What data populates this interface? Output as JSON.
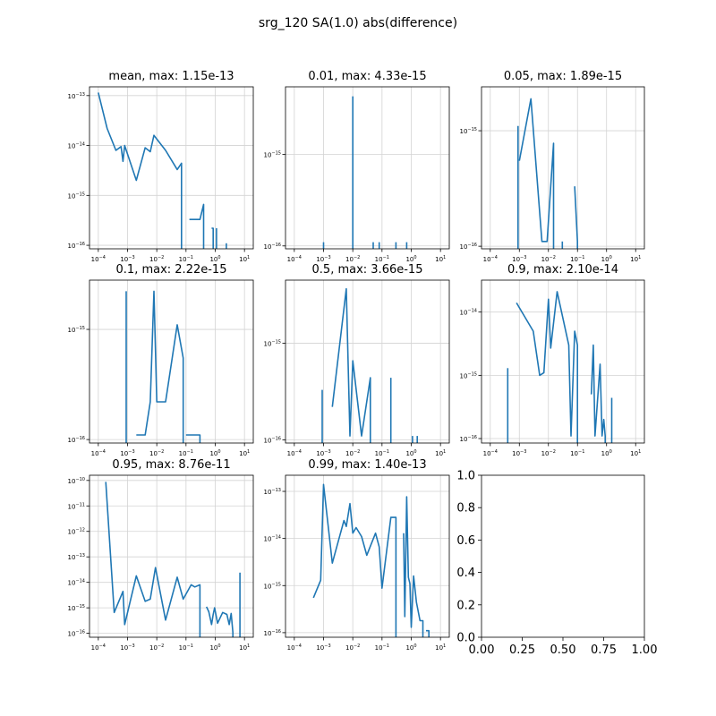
{
  "figure": {
    "title": "srg_120 SA(1.0) abs(difference)"
  },
  "chart_data": [
    {
      "type": "line",
      "xscale": "log",
      "yscale": "log",
      "grid": true,
      "title": "mean, max:  1.15e-13",
      "xlim": [
        5e-05,
        20
      ],
      "ylim": [
        8.5e-17,
        1.5e-13
      ],
      "x_tick_labels": [
        "10^-4",
        "10^-3",
        "10^-2",
        "10^-1",
        "10^0",
        "10^1"
      ],
      "y_tick_labels": [
        "10^-16",
        "10^-15",
        "10^-14",
        "10^-13"
      ],
      "series": [
        {
          "points": [
            [
              0.0001,
              1.15e-13
            ],
            [
              0.0002,
              2.2e-14
            ],
            [
              0.0004,
              8e-15
            ],
            [
              0.0006,
              9.5e-15
            ],
            [
              0.0007,
              4.8e-15
            ],
            [
              0.0008,
              1e-14
            ],
            [
              0.002,
              2e-15
            ],
            [
              0.004,
              9e-15
            ],
            [
              0.006,
              7.5e-15
            ],
            [
              0.008,
              1.6e-14
            ],
            [
              0.02,
              8e-15
            ],
            [
              0.05,
              3.3e-15
            ],
            [
              0.07,
              4.4e-15
            ],
            [
              0.07,
              null
            ]
          ]
        },
        {
          "points": [
            [
              0.13,
              3.3e-16
            ],
            [
              0.3,
              3.3e-16
            ],
            [
              0.4,
              6.6e-16
            ],
            [
              0.4,
              null
            ]
          ]
        },
        {
          "points": [
            [
              0.75,
              2.2e-16
            ],
            [
              0.85,
              2.2e-16
            ],
            [
              0.85,
              null
            ]
          ]
        },
        {
          "points": [
            [
              1.1,
              2.2e-16
            ],
            [
              1.1,
              null
            ]
          ]
        },
        {
          "points": [
            [
              2.4,
              1.1e-16
            ],
            [
              2.4,
              null
            ]
          ]
        }
      ]
    },
    {
      "type": "line",
      "xscale": "log",
      "yscale": "log",
      "grid": true,
      "title": "0.01, max:  4.33e-15",
      "xlim": [
        5e-05,
        20
      ],
      "ylim": [
        9.3e-17,
        5.5e-15
      ],
      "x_tick_labels": [
        "10^-4",
        "10^-3",
        "10^-2",
        "10^-1",
        "10^0",
        "10^1"
      ],
      "y_tick_labels": [
        "10^-16",
        "10^-15"
      ],
      "series": [
        {
          "points": [
            [
              0.001,
              1.1e-16
            ],
            [
              0.001,
              null
            ]
          ]
        },
        {
          "points": [
            [
              0.01,
              4.33e-15
            ],
            [
              0.01,
              null
            ]
          ]
        },
        {
          "points": [
            [
              0.05,
              1.1e-16
            ],
            [
              0.05,
              null
            ]
          ]
        },
        {
          "points": [
            [
              0.08,
              1.1e-16
            ],
            [
              0.08,
              null
            ]
          ]
        },
        {
          "points": [
            [
              0.3,
              1.1e-16
            ],
            [
              0.3,
              null
            ]
          ]
        },
        {
          "points": [
            [
              0.7,
              1.1e-16
            ],
            [
              0.7,
              null
            ]
          ]
        }
      ]
    },
    {
      "type": "line",
      "xscale": "log",
      "yscale": "log",
      "grid": true,
      "title": "0.05, max:  1.89e-15",
      "xlim": [
        5e-05,
        20
      ],
      "ylim": [
        9.5e-17,
        2.4e-15
      ],
      "x_tick_labels": [
        "10^-4",
        "10^-3",
        "10^-2",
        "10^-1",
        "10^0",
        "10^1"
      ],
      "y_tick_labels": [
        "10^-16",
        "10^-15"
      ],
      "series": [
        {
          "points": [
            [
              0.0009,
              1.1e-15
            ],
            [
              0.0009,
              null
            ]
          ]
        },
        {
          "points": [
            [
              0.001,
              5.5e-16
            ],
            [
              0.0025,
              1.89e-15
            ],
            [
              0.006,
              1.1e-16
            ],
            [
              0.009,
              1.1e-16
            ],
            [
              0.015,
              7.8e-16
            ],
            [
              0.015,
              null
            ]
          ]
        },
        {
          "points": [
            [
              0.03,
              1.1e-16
            ],
            [
              0.03,
              null
            ]
          ]
        },
        {
          "points": [
            [
              0.08,
              3.3e-16
            ],
            [
              0.1,
              1.1e-16
            ],
            [
              0.1,
              null
            ]
          ]
        }
      ]
    },
    {
      "type": "line",
      "xscale": "log",
      "yscale": "log",
      "grid": true,
      "title": "0.1, max:  2.22e-15",
      "xlim": [
        5e-05,
        20
      ],
      "ylim": [
        9.3e-17,
        2.8e-15
      ],
      "x_tick_labels": [
        "10^-4",
        "10^-3",
        "10^-2",
        "10^-1",
        "10^0",
        "10^1"
      ],
      "y_tick_labels": [
        "10^-16",
        "10^-15"
      ],
      "series": [
        {
          "points": [
            [
              0.0009,
              2.22e-15
            ],
            [
              0.0009,
              null
            ]
          ]
        },
        {
          "points": [
            [
              0.002,
              1.1e-16
            ],
            [
              0.004,
              1.1e-16
            ],
            [
              0.006,
              2.2e-16
            ],
            [
              0.008,
              2.22e-15
            ],
            [
              0.01,
              2.2e-16
            ],
            [
              0.02,
              2.2e-16
            ],
            [
              0.05,
              1.1e-15
            ],
            [
              0.08,
              5.5e-16
            ],
            [
              0.08,
              null
            ]
          ]
        },
        {
          "points": [
            [
              0.1,
              1.1e-16
            ],
            [
              0.3,
              1.1e-16
            ],
            [
              0.3,
              null
            ]
          ]
        }
      ]
    },
    {
      "type": "line",
      "xscale": "log",
      "yscale": "log",
      "grid": true,
      "title": "0.5, max:  3.66e-15",
      "xlim": [
        5e-05,
        20
      ],
      "ylim": [
        9.3e-17,
        4.5e-15
      ],
      "x_tick_labels": [
        "10^-4",
        "10^-3",
        "10^-2",
        "10^-1",
        "10^0",
        "10^1"
      ],
      "y_tick_labels": [
        "10^-16",
        "10^-15"
      ],
      "series": [
        {
          "points": [
            [
              0.0009,
              3.3e-16
            ],
            [
              0.0009,
              null
            ]
          ]
        },
        {
          "points": [
            [
              0.002,
              2.2e-16
            ],
            [
              0.006,
              3.66e-15
            ],
            [
              0.008,
              1.1e-16
            ],
            [
              0.01,
              6.6e-16
            ],
            [
              0.02,
              1.1e-16
            ],
            [
              0.04,
              4.4e-16
            ],
            [
              0.04,
              null
            ]
          ]
        },
        {
          "points": [
            [
              0.2,
              4.4e-16
            ],
            [
              0.2,
              null
            ]
          ]
        },
        {
          "points": [
            [
              1.1,
              1.1e-16
            ],
            [
              1.1,
              null
            ]
          ]
        },
        {
          "points": [
            [
              1.6,
              1.1e-16
            ],
            [
              1.6,
              null
            ]
          ]
        }
      ]
    },
    {
      "type": "line",
      "xscale": "log",
      "yscale": "log",
      "grid": true,
      "title": "0.9, max:  2.10e-14",
      "xlim": [
        5e-05,
        20
      ],
      "ylim": [
        8.5e-17,
        3.2e-14
      ],
      "x_tick_labels": [
        "10^-4",
        "10^-3",
        "10^-2",
        "10^-1",
        "10^0",
        "10^1"
      ],
      "y_tick_labels": [
        "10^-16",
        "10^-15",
        "10^-14"
      ],
      "series": [
        {
          "points": [
            [
              0.0004,
              1.3e-15
            ],
            [
              0.0004,
              null
            ]
          ]
        },
        {
          "points": [
            [
              0.0008,
              1.4e-14
            ],
            [
              0.003,
              5e-15
            ],
            [
              0.005,
              1e-15
            ],
            [
              0.007,
              1.1e-15
            ],
            [
              0.01,
              1.6e-14
            ],
            [
              0.012,
              2.7e-15
            ],
            [
              0.02,
              2.1e-14
            ],
            [
              0.05,
              3e-15
            ],
            [
              0.06,
              1.1e-16
            ],
            [
              0.08,
              5e-15
            ],
            [
              0.1,
              3e-15
            ],
            [
              0.1,
              null
            ]
          ]
        },
        {
          "points": [
            [
              0.3,
              5e-16
            ],
            [
              0.35,
              3e-15
            ],
            [
              0.4,
              1.1e-16
            ],
            [
              0.6,
              1.5e-15
            ],
            [
              0.7,
              1.1e-16
            ],
            [
              0.8,
              2e-16
            ],
            [
              0.9,
              1.1e-16
            ],
            [
              0.9,
              null
            ]
          ]
        },
        {
          "points": [
            [
              1.5,
              4.4e-16
            ],
            [
              1.5,
              null
            ]
          ]
        }
      ]
    },
    {
      "type": "line",
      "xscale": "log",
      "yscale": "log",
      "grid": true,
      "title": "0.95, max:  8.76e-11",
      "xlim": [
        5e-05,
        20
      ],
      "ylim": [
        7e-17,
        1.6e-10
      ],
      "x_tick_labels": [
        "10^-4",
        "10^-3",
        "10^-2",
        "10^-1",
        "10^0",
        "10^1"
      ],
      "y_tick_labels": [
        "10^-16",
        "10^-15",
        "10^-14",
        "10^-13",
        "10^-12",
        "10^-11",
        "10^-10"
      ],
      "series": [
        {
          "points": [
            [
              0.00018,
              8.76e-11
            ],
            [
              0.00035,
              6.6e-16
            ],
            [
              0.0007,
              4.4e-15
            ],
            [
              0.0008,
              2.2e-16
            ],
            [
              0.002,
              1.8e-14
            ],
            [
              0.004,
              1.8e-15
            ],
            [
              0.006,
              2.2e-15
            ],
            [
              0.009,
              3.8e-14
            ],
            [
              0.02,
              3.3e-16
            ],
            [
              0.05,
              1.6e-14
            ],
            [
              0.08,
              2.2e-15
            ],
            [
              0.15,
              8e-15
            ],
            [
              0.2,
              6.6e-15
            ],
            [
              0.3,
              8e-15
            ],
            [
              0.3,
              null
            ]
          ]
        },
        {
          "points": [
            [
              0.5,
              1.1e-15
            ],
            [
              0.6,
              7e-16
            ],
            [
              0.75,
              2.2e-16
            ],
            [
              0.85,
              5.5e-16
            ],
            [
              0.95,
              1e-15
            ],
            [
              1.2,
              2.5e-16
            ],
            [
              1.8,
              6.6e-16
            ],
            [
              2.5,
              5.5e-16
            ],
            [
              3,
              2.2e-16
            ],
            [
              3.5,
              6e-16
            ],
            [
              4,
              1.1e-16
            ],
            [
              4,
              null
            ]
          ]
        },
        {
          "points": [
            [
              7,
              2.4e-14
            ],
            [
              7,
              null
            ]
          ]
        }
      ]
    },
    {
      "type": "line",
      "xscale": "log",
      "yscale": "log",
      "grid": true,
      "title": "0.99, max:  1.40e-13",
      "xlim": [
        5e-05,
        20
      ],
      "ylim": [
        8e-17,
        2.2e-13
      ],
      "x_tick_labels": [
        "10^-4",
        "10^-3",
        "10^-2",
        "10^-1",
        "10^0",
        "10^1"
      ],
      "y_tick_labels": [
        "10^-16",
        "10^-15",
        "10^-14",
        "10^-13"
      ],
      "series": [
        {
          "points": [
            [
              0.00045,
              5.5e-16
            ],
            [
              0.0008,
              1.3e-15
            ],
            [
              0.001,
              1.4e-13
            ],
            [
              0.002,
              3e-15
            ],
            [
              0.005,
              2.4e-14
            ],
            [
              0.006,
              1.8e-14
            ],
            [
              0.008,
              5.5e-14
            ],
            [
              0.01,
              1.3e-14
            ],
            [
              0.013,
              1.7e-14
            ],
            [
              0.02,
              1.1e-14
            ],
            [
              0.03,
              4.4e-15
            ],
            [
              0.06,
              1.3e-14
            ],
            [
              0.08,
              6.6e-15
            ],
            [
              0.1,
              8.8e-16
            ],
            [
              0.2,
              2.8e-14
            ],
            [
              0.3,
              2.8e-14
            ],
            [
              0.3,
              null
            ]
          ]
        },
        {
          "points": [
            [
              0.55,
              1.3e-14
            ],
            [
              0.6,
              2.2e-16
            ],
            [
              0.7,
              7.7e-14
            ],
            [
              0.8,
              1.5e-15
            ],
            [
              0.9,
              1.1e-15
            ],
            [
              1,
              1.3e-16
            ],
            [
              1.2,
              1.6e-15
            ],
            [
              1.5,
              4.4e-16
            ],
            [
              2,
              1.8e-16
            ],
            [
              2.5,
              1.8e-16
            ],
            [
              2.5,
              null
            ]
          ]
        },
        {
          "points": [
            [
              3.2,
              1.1e-16
            ],
            [
              4,
              1.1e-16
            ],
            [
              4,
              null
            ]
          ]
        }
      ]
    },
    {
      "type": "line",
      "empty": true,
      "xlim": [
        0,
        1
      ],
      "ylim": [
        0,
        1
      ],
      "x_tick_labels": [
        "0.00",
        "0.25",
        "0.50",
        "0.75",
        "1.00"
      ],
      "y_tick_labels": [
        "0.0",
        "0.2",
        "0.4",
        "0.6",
        "0.8",
        "1.0"
      ],
      "series": []
    }
  ],
  "style": {
    "line_color": "#1f77b4",
    "grid_color": "#d3d3d3"
  }
}
